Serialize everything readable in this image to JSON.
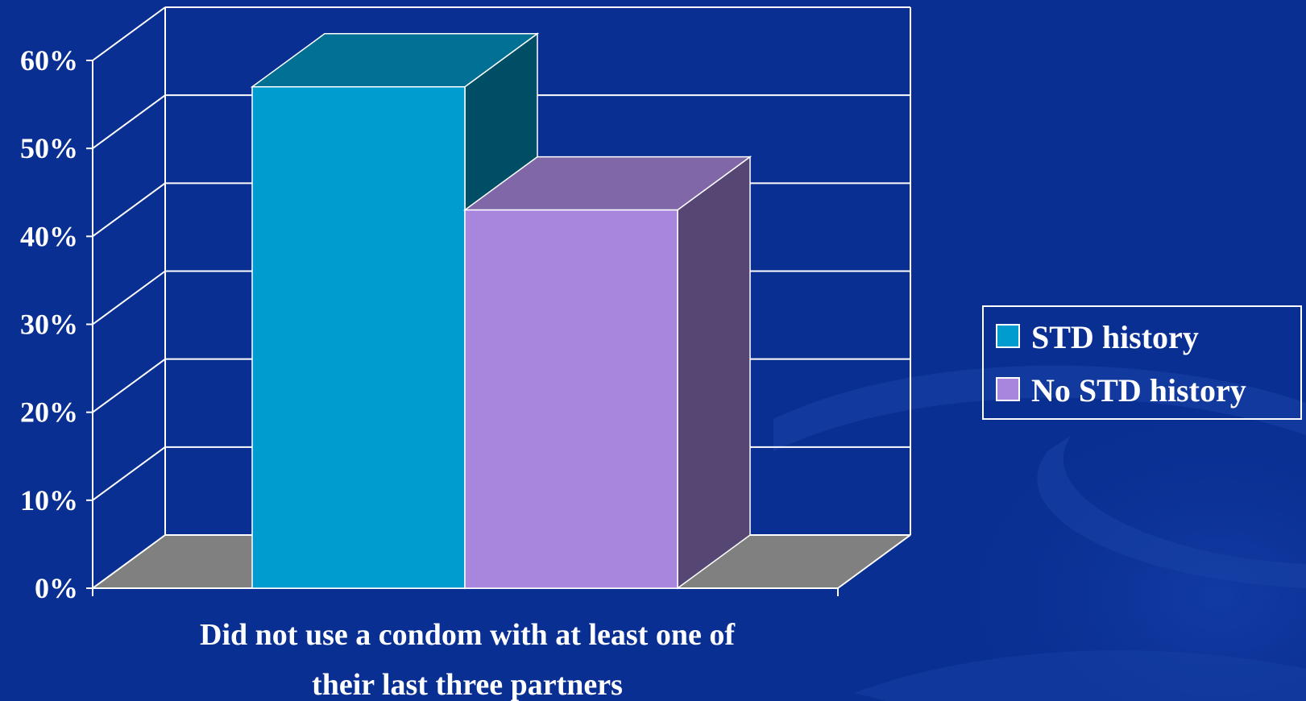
{
  "colors": {
    "background": "#0a2f93",
    "gridline": "#ffffff",
    "floor": "#808080",
    "std_front": "#009bcf",
    "std_top": "#007094",
    "std_side": "#004e66",
    "nostd_front": "#a886de",
    "nostd_top": "#8068a8",
    "nostd_side": "#564674"
  },
  "chart_data": {
    "type": "bar",
    "style": "3d-column",
    "categories": [
      "Did not use a condom with at least one of their last three partners"
    ],
    "category_label_lines": [
      "Did not use a condom with at least one of",
      "their last three partners"
    ],
    "series": [
      {
        "name": "STD history",
        "values": [
          57
        ],
        "color": "#009bcf"
      },
      {
        "name": "No STD history",
        "values": [
          43
        ],
        "color": "#a886de"
      }
    ],
    "ylim": [
      0,
      60
    ],
    "yticks": [
      0,
      10,
      20,
      30,
      40,
      50,
      60
    ],
    "ytick_labels": [
      "0%",
      "10%",
      "20%",
      "30%",
      "40%",
      "50%",
      "60%"
    ],
    "grid": true,
    "legend_position": "right"
  }
}
